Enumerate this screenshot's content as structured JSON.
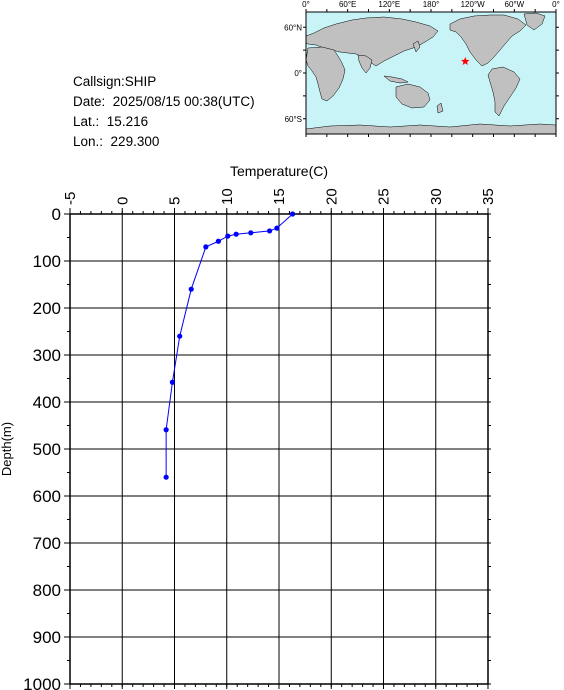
{
  "station": {
    "callsign_label": "Callsign:",
    "callsign": "SHIP",
    "date_label": "Date:",
    "date": "2025/08/15 00:38(UTC)",
    "lat_label": "Lat.:",
    "lat": "15.216",
    "lon_label": "Lon.:",
    "lon": "229.300"
  },
  "map": {
    "top_ticks": [
      "0°",
      "60°E",
      "120°E",
      "180°",
      "120°W",
      "60°W",
      "0°"
    ],
    "left_ticks": [
      "60°N",
      "0°",
      "60°S"
    ],
    "colors": {
      "ocean": "#c8f4f8",
      "land": "#c0c0c0",
      "marker": "#ff0000"
    },
    "marker_icon": "star-icon",
    "marker_lon": 229.3,
    "marker_lat": 15.216
  },
  "chart_data": {
    "type": "line",
    "xlabel": "Temperature(C)",
    "ylabel": "Depth(m)",
    "xlim": [
      -5,
      35
    ],
    "ylim": [
      0,
      1000
    ],
    "x_ticks": [
      "-5",
      "0",
      "5",
      "10",
      "15",
      "20",
      "25",
      "30",
      "35"
    ],
    "y_ticks": [
      "0",
      "100",
      "200",
      "300",
      "400",
      "500",
      "600",
      "700",
      "800",
      "900",
      "1000"
    ],
    "x_axis_position": "top",
    "y_reversed": true,
    "grid": true,
    "series_color": "#0000ff",
    "series": [
      {
        "temperature": [
          16.3,
          14.8,
          14.1,
          12.3,
          10.9,
          10.1,
          9.2,
          8.0,
          6.6,
          5.5,
          4.8,
          4.2,
          4.2
        ],
        "depth": [
          0,
          30,
          36,
          40,
          43,
          47,
          58,
          70,
          160,
          260,
          358,
          459,
          560
        ]
      }
    ]
  }
}
